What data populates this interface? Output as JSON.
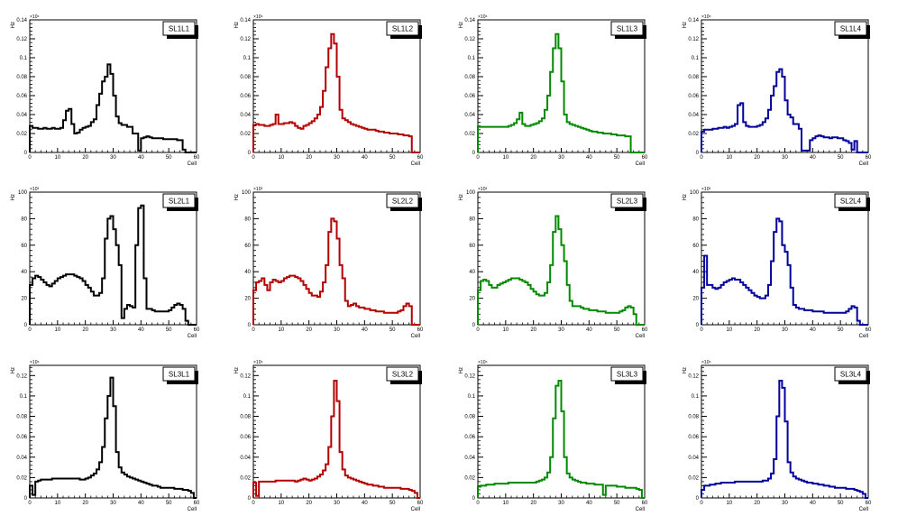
{
  "chart_data": [
    {
      "type": "histogram",
      "title": "SL1L1",
      "xlabel": "Cell",
      "ylabel": "Hz",
      "exponent": "×10⁶",
      "color": "#000000",
      "xlim": [
        0,
        60
      ],
      "ylim": [
        0,
        0.14
      ],
      "yticks": [
        0,
        0.02,
        0.04,
        0.06,
        0.08,
        0.1,
        0.12,
        0.14
      ],
      "ytick_labels": [
        "0",
        "0.02",
        "0.04",
        "0.06",
        "0.08",
        "0.1",
        "0.12",
        "0.14"
      ],
      "xticks": [
        0,
        10,
        20,
        30,
        40,
        50,
        60
      ],
      "xtick_labels": [
        "0",
        "10",
        "20",
        "30",
        "40",
        "50",
        "60"
      ],
      "bin_width": 1,
      "values": [
        0.028,
        0.026,
        0.026,
        0.025,
        0.025,
        0.026,
        0.025,
        0.025,
        0.026,
        0.025,
        0.025,
        0.026,
        0.034,
        0.044,
        0.046,
        0.03,
        0.02,
        0.021,
        0.024,
        0.026,
        0.027,
        0.028,
        0.032,
        0.035,
        0.05,
        0.062,
        0.075,
        0.08,
        0.093,
        0.083,
        0.06,
        0.038,
        0.031,
        0.029,
        0.029,
        0.027,
        0.027,
        0.02,
        0.02,
        0.002,
        0.015,
        0.016,
        0.017,
        0.016,
        0.015,
        0.015,
        0.015,
        0.015,
        0.014,
        0.014,
        0.014,
        0.014,
        0.014,
        0.013,
        0.013,
        0.003,
        0.0,
        0.0,
        0.0,
        0.0
      ]
    },
    {
      "type": "histogram",
      "title": "SL1L2",
      "xlabel": "Cell",
      "ylabel": "Hz",
      "exponent": "×10⁶",
      "color": "#b40000",
      "xlim": [
        0,
        60
      ],
      "ylim": [
        0,
        0.14
      ],
      "yticks": [
        0,
        0.02,
        0.04,
        0.06,
        0.08,
        0.1,
        0.12,
        0.14
      ],
      "ytick_labels": [
        "0",
        "0.02",
        "0.04",
        "0.06",
        "0.08",
        "0.1",
        "0.12",
        "0.14"
      ],
      "xticks": [
        0,
        10,
        20,
        30,
        40,
        50,
        60
      ],
      "xtick_labels": [
        "0",
        "10",
        "20",
        "30",
        "40",
        "50",
        "60"
      ],
      "bin_width": 1,
      "values": [
        0.029,
        0.03,
        0.029,
        0.029,
        0.028,
        0.028,
        0.029,
        0.03,
        0.04,
        0.03,
        0.03,
        0.031,
        0.031,
        0.032,
        0.031,
        0.028,
        0.026,
        0.025,
        0.028,
        0.029,
        0.031,
        0.033,
        0.036,
        0.04,
        0.048,
        0.065,
        0.09,
        0.11,
        0.125,
        0.115,
        0.08,
        0.045,
        0.036,
        0.034,
        0.032,
        0.03,
        0.029,
        0.028,
        0.027,
        0.026,
        0.025,
        0.024,
        0.024,
        0.024,
        0.023,
        0.022,
        0.022,
        0.021,
        0.021,
        0.02,
        0.02,
        0.02,
        0.019,
        0.019,
        0.018,
        0.018,
        0.017,
        0.0,
        0.0,
        0.0
      ]
    },
    {
      "type": "histogram",
      "title": "SL1L3",
      "xlabel": "Cell",
      "ylabel": "Hz",
      "exponent": "×10⁶",
      "color": "#008a00",
      "xlim": [
        0,
        60
      ],
      "ylim": [
        0,
        0.14
      ],
      "yticks": [
        0,
        0.02,
        0.04,
        0.06,
        0.08,
        0.1,
        0.12,
        0.14
      ],
      "ytick_labels": [
        "0",
        "0.02",
        "0.04",
        "0.06",
        "0.08",
        "0.1",
        "0.12",
        "0.14"
      ],
      "xticks": [
        0,
        10,
        20,
        30,
        40,
        50,
        60
      ],
      "xtick_labels": [
        "0",
        "10",
        "20",
        "30",
        "40",
        "50",
        "60"
      ],
      "bin_width": 1,
      "values": [
        0.027,
        0.027,
        0.027,
        0.027,
        0.027,
        0.027,
        0.027,
        0.027,
        0.027,
        0.027,
        0.027,
        0.028,
        0.029,
        0.031,
        0.035,
        0.042,
        0.03,
        0.028,
        0.028,
        0.029,
        0.03,
        0.031,
        0.033,
        0.036,
        0.045,
        0.06,
        0.085,
        0.11,
        0.125,
        0.11,
        0.075,
        0.04,
        0.032,
        0.03,
        0.029,
        0.028,
        0.027,
        0.026,
        0.025,
        0.024,
        0.023,
        0.022,
        0.022,
        0.021,
        0.021,
        0.02,
        0.02,
        0.02,
        0.019,
        0.019,
        0.018,
        0.018,
        0.018,
        0.017,
        0.017,
        0.0,
        0.0,
        0.0,
        0.0,
        0.0
      ]
    },
    {
      "type": "histogram",
      "title": "SL1L4",
      "xlabel": "Cell",
      "ylabel": "Hz",
      "exponent": "×10⁶",
      "color": "#00009c",
      "xlim": [
        0,
        60
      ],
      "ylim": [
        0,
        0.14
      ],
      "yticks": [
        0,
        0.02,
        0.04,
        0.06,
        0.08,
        0.1,
        0.12,
        0.14
      ],
      "ytick_labels": [
        "0",
        "0.02",
        "0.04",
        "0.06",
        "0.08",
        "0.1",
        "0.12",
        "0.14"
      ],
      "xticks": [
        0,
        10,
        20,
        30,
        40,
        50,
        60
      ],
      "xtick_labels": [
        "0",
        "10",
        "20",
        "30",
        "40",
        "50",
        "60"
      ],
      "bin_width": 1,
      "values": [
        0.022,
        0.024,
        0.024,
        0.024,
        0.025,
        0.025,
        0.026,
        0.026,
        0.027,
        0.026,
        0.027,
        0.028,
        0.03,
        0.05,
        0.052,
        0.032,
        0.028,
        0.027,
        0.027,
        0.027,
        0.028,
        0.029,
        0.032,
        0.036,
        0.045,
        0.06,
        0.07,
        0.085,
        0.088,
        0.08,
        0.055,
        0.04,
        0.037,
        0.03,
        0.03,
        0.025,
        0.002,
        0.002,
        0.002,
        0.013,
        0.015,
        0.017,
        0.018,
        0.017,
        0.016,
        0.016,
        0.015,
        0.016,
        0.016,
        0.015,
        0.015,
        0.013,
        0.012,
        0.01,
        0.003,
        0.012,
        0.0,
        0.0,
        0.0,
        0.0
      ]
    },
    {
      "type": "histogram",
      "title": "SL2L1",
      "xlabel": "Cell",
      "ylabel": "Hz",
      "exponent": "×10³",
      "color": "#000000",
      "xlim": [
        0,
        60
      ],
      "ylim": [
        0,
        100
      ],
      "yticks": [
        0,
        20,
        40,
        60,
        80,
        100
      ],
      "ytick_labels": [
        "0",
        "20",
        "40",
        "60",
        "80",
        "100"
      ],
      "xticks": [
        0,
        10,
        20,
        30,
        40,
        50,
        60
      ],
      "xtick_labels": [
        "0",
        "10",
        "20",
        "30",
        "40",
        "50",
        "60"
      ],
      "bin_width": 1,
      "values": [
        30,
        35,
        37,
        36,
        34,
        32,
        30,
        29,
        31,
        33,
        35,
        36,
        37,
        38,
        38,
        38,
        37,
        36,
        35,
        33,
        30,
        28,
        25,
        22,
        22,
        24,
        35,
        65,
        80,
        82,
        72,
        60,
        45,
        5,
        12,
        15,
        14,
        13,
        60,
        88,
        90,
        35,
        12,
        12,
        11,
        10,
        10,
        10,
        10,
        10,
        11,
        13,
        15,
        16,
        15,
        12,
        3,
        0,
        0,
        0
      ]
    },
    {
      "type": "histogram",
      "title": "SL2L2",
      "xlabel": "Cell",
      "ylabel": "Hz",
      "exponent": "×10³",
      "color": "#b40000",
      "xlim": [
        0,
        60
      ],
      "ylim": [
        0,
        100
      ],
      "yticks": [
        0,
        20,
        40,
        60,
        80,
        100
      ],
      "ytick_labels": [
        "0",
        "20",
        "40",
        "60",
        "80",
        "100"
      ],
      "xticks": [
        0,
        10,
        20,
        30,
        40,
        50,
        60
      ],
      "xtick_labels": [
        "0",
        "10",
        "20",
        "30",
        "40",
        "50",
        "60"
      ],
      "bin_width": 1,
      "values": [
        26,
        32,
        33,
        35,
        30,
        26,
        32,
        34,
        33,
        32,
        33,
        35,
        36,
        37,
        37,
        36,
        35,
        33,
        30,
        27,
        24,
        22,
        22,
        21,
        25,
        32,
        45,
        70,
        80,
        78,
        65,
        45,
        35,
        18,
        14,
        15,
        16,
        14,
        13,
        13,
        12,
        12,
        11,
        11,
        10,
        10,
        10,
        9,
        9,
        9,
        9,
        9,
        10,
        11,
        14,
        16,
        14,
        0,
        0,
        0
      ]
    },
    {
      "type": "histogram",
      "title": "SL2L3",
      "xlabel": "Cell",
      "ylabel": "Hz",
      "exponent": "×10³",
      "color": "#008a00",
      "xlim": [
        0,
        60
      ],
      "ylim": [
        0,
        100
      ],
      "yticks": [
        0,
        20,
        40,
        60,
        80,
        100
      ],
      "ytick_labels": [
        "0",
        "20",
        "40",
        "60",
        "80",
        "100"
      ],
      "xticks": [
        0,
        10,
        20,
        30,
        40,
        50,
        60
      ],
      "xtick_labels": [
        "0",
        "10",
        "20",
        "30",
        "40",
        "50",
        "60"
      ],
      "bin_width": 1,
      "values": [
        26,
        33,
        34,
        33,
        30,
        28,
        28,
        30,
        31,
        32,
        33,
        34,
        35,
        35,
        35,
        34,
        33,
        32,
        30,
        27,
        25,
        23,
        22,
        22,
        24,
        32,
        45,
        70,
        82,
        72,
        60,
        48,
        30,
        18,
        14,
        14,
        14,
        13,
        12,
        12,
        11,
        11,
        11,
        10,
        10,
        10,
        9,
        9,
        9,
        9,
        9,
        10,
        11,
        13,
        14,
        13,
        8,
        0,
        0,
        0
      ]
    },
    {
      "type": "histogram",
      "title": "SL2L4",
      "xlabel": "Cell",
      "ylabel": "Hz",
      "exponent": "×10³",
      "color": "#00009c",
      "xlim": [
        0,
        60
      ],
      "ylim": [
        0,
        100
      ],
      "yticks": [
        0,
        20,
        40,
        60,
        80,
        100
      ],
      "ytick_labels": [
        "0",
        "20",
        "40",
        "60",
        "80",
        "100"
      ],
      "xticks": [
        0,
        10,
        20,
        30,
        40,
        50,
        60
      ],
      "xtick_labels": [
        "0",
        "10",
        "20",
        "30",
        "40",
        "50",
        "60"
      ],
      "bin_width": 1,
      "values": [
        28,
        52,
        30,
        30,
        28,
        27,
        28,
        30,
        32,
        33,
        34,
        35,
        34,
        34,
        32,
        30,
        28,
        26,
        24,
        22,
        21,
        20,
        20,
        22,
        30,
        48,
        70,
        80,
        78,
        60,
        55,
        45,
        28,
        15,
        13,
        12,
        12,
        11,
        11,
        11,
        10,
        10,
        10,
        10,
        9,
        9,
        9,
        9,
        9,
        9,
        9,
        9,
        10,
        12,
        14,
        13,
        3,
        0,
        0,
        0
      ]
    },
    {
      "type": "histogram",
      "title": "SL3L1",
      "xlabel": "Cell",
      "ylabel": "Hz",
      "exponent": "×10⁶",
      "color": "#000000",
      "xlim": [
        0,
        60
      ],
      "ylim": [
        0,
        0.13
      ],
      "yticks": [
        0,
        0.02,
        0.04,
        0.06,
        0.08,
        0.1,
        0.12
      ],
      "ytick_labels": [
        "0",
        "0.02",
        "0.04",
        "0.06",
        "0.08",
        "0.1",
        "0.12"
      ],
      "xticks": [
        0,
        10,
        20,
        30,
        40,
        50,
        60
      ],
      "xtick_labels": [
        "0",
        "10",
        "20",
        "30",
        "40",
        "50",
        "60"
      ],
      "bin_width": 1,
      "values": [
        0.012,
        0.003,
        0.016,
        0.017,
        0.018,
        0.018,
        0.018,
        0.018,
        0.019,
        0.019,
        0.019,
        0.019,
        0.019,
        0.019,
        0.019,
        0.019,
        0.019,
        0.019,
        0.018,
        0.018,
        0.019,
        0.02,
        0.022,
        0.024,
        0.028,
        0.035,
        0.05,
        0.078,
        0.1,
        0.118,
        0.09,
        0.045,
        0.03,
        0.025,
        0.023,
        0.021,
        0.02,
        0.019,
        0.018,
        0.017,
        0.016,
        0.015,
        0.014,
        0.013,
        0.012,
        0.012,
        0.011,
        0.01,
        0.01,
        0.01,
        0.01,
        0.01,
        0.009,
        0.009,
        0.009,
        0.008,
        0.008,
        0.007,
        0.005,
        0.0
      ]
    },
    {
      "type": "histogram",
      "title": "SL3L2",
      "xlabel": "Cell",
      "ylabel": "Hz",
      "exponent": "×10⁶",
      "color": "#b40000",
      "xlim": [
        0,
        60
      ],
      "ylim": [
        0,
        0.13
      ],
      "yticks": [
        0,
        0.02,
        0.04,
        0.06,
        0.08,
        0.1,
        0.12
      ],
      "ytick_labels": [
        "0",
        "0.02",
        "0.04",
        "0.06",
        "0.08",
        "0.1",
        "0.12"
      ],
      "xticks": [
        0,
        10,
        20,
        30,
        40,
        50,
        60
      ],
      "xtick_labels": [
        "0",
        "10",
        "20",
        "30",
        "40",
        "50",
        "60"
      ],
      "bin_width": 1,
      "values": [
        0.015,
        0.002,
        0.016,
        0.016,
        0.016,
        0.016,
        0.016,
        0.016,
        0.017,
        0.017,
        0.017,
        0.017,
        0.017,
        0.017,
        0.017,
        0.016,
        0.017,
        0.018,
        0.019,
        0.018,
        0.017,
        0.018,
        0.019,
        0.021,
        0.023,
        0.027,
        0.033,
        0.05,
        0.08,
        0.115,
        0.095,
        0.045,
        0.028,
        0.022,
        0.02,
        0.019,
        0.018,
        0.017,
        0.016,
        0.015,
        0.014,
        0.013,
        0.013,
        0.012,
        0.012,
        0.011,
        0.011,
        0.01,
        0.01,
        0.01,
        0.01,
        0.01,
        0.01,
        0.009,
        0.009,
        0.009,
        0.008,
        0.007,
        0.005,
        0.0
      ]
    },
    {
      "type": "histogram",
      "title": "SL3L3",
      "xlabel": "Cell",
      "ylabel": "Hz",
      "exponent": "×10⁶",
      "color": "#008a00",
      "xlim": [
        0,
        60
      ],
      "ylim": [
        0,
        0.13
      ],
      "yticks": [
        0,
        0.02,
        0.04,
        0.06,
        0.08,
        0.1,
        0.12
      ],
      "ytick_labels": [
        "0",
        "0.02",
        "0.04",
        "0.06",
        "0.08",
        "0.1",
        "0.12"
      ],
      "xticks": [
        0,
        10,
        20,
        30,
        40,
        50,
        60
      ],
      "xtick_labels": [
        "0",
        "10",
        "20",
        "30",
        "40",
        "50",
        "60"
      ],
      "bin_width": 1,
      "values": [
        0.011,
        0.012,
        0.012,
        0.013,
        0.013,
        0.013,
        0.014,
        0.014,
        0.014,
        0.014,
        0.014,
        0.015,
        0.015,
        0.015,
        0.015,
        0.015,
        0.015,
        0.015,
        0.015,
        0.015,
        0.015,
        0.016,
        0.017,
        0.018,
        0.02,
        0.025,
        0.04,
        0.078,
        0.11,
        0.115,
        0.085,
        0.04,
        0.024,
        0.02,
        0.018,
        0.017,
        0.016,
        0.015,
        0.015,
        0.014,
        0.014,
        0.014,
        0.013,
        0.013,
        0.013,
        0.003,
        0.012,
        0.012,
        0.012,
        0.012,
        0.011,
        0.011,
        0.011,
        0.01,
        0.01,
        0.01,
        0.01,
        0.009,
        0.008,
        0.0
      ]
    },
    {
      "type": "histogram",
      "title": "SL3L4",
      "xlabel": "Cell",
      "ylabel": "Hz",
      "exponent": "×10⁶",
      "color": "#00009c",
      "xlim": [
        0,
        60
      ],
      "ylim": [
        0,
        0.13
      ],
      "yticks": [
        0,
        0.02,
        0.04,
        0.06,
        0.08,
        0.1,
        0.12
      ],
      "ytick_labels": [
        "0",
        "0.02",
        "0.04",
        "0.06",
        "0.08",
        "0.1",
        "0.12"
      ],
      "xticks": [
        0,
        10,
        20,
        30,
        40,
        50,
        60
      ],
      "xtick_labels": [
        "0",
        "10",
        "20",
        "30",
        "40",
        "50",
        "60"
      ],
      "bin_width": 1,
      "values": [
        0.008,
        0.012,
        0.012,
        0.013,
        0.013,
        0.014,
        0.014,
        0.015,
        0.015,
        0.015,
        0.015,
        0.015,
        0.016,
        0.016,
        0.016,
        0.016,
        0.016,
        0.016,
        0.016,
        0.016,
        0.016,
        0.016,
        0.017,
        0.017,
        0.019,
        0.024,
        0.038,
        0.08,
        0.115,
        0.108,
        0.075,
        0.035,
        0.025,
        0.021,
        0.019,
        0.018,
        0.017,
        0.016,
        0.015,
        0.015,
        0.014,
        0.014,
        0.013,
        0.013,
        0.012,
        0.012,
        0.011,
        0.011,
        0.01,
        0.01,
        0.01,
        0.01,
        0.009,
        0.009,
        0.009,
        0.008,
        0.007,
        0.006,
        0.004,
        0.0
      ]
    }
  ]
}
